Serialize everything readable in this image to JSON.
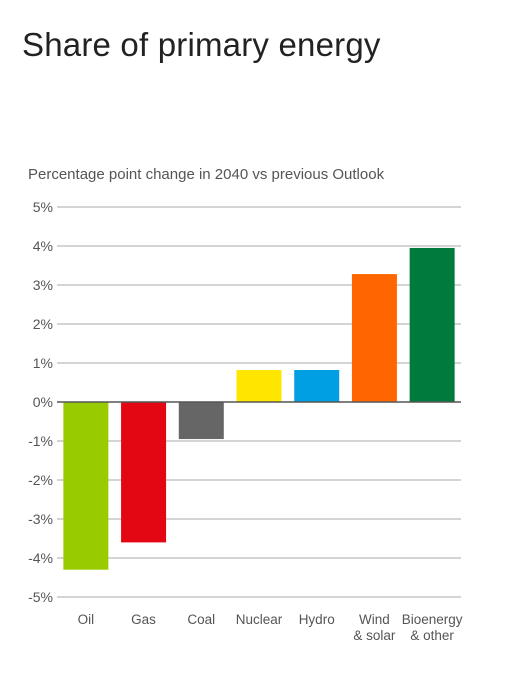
{
  "title": "Share of primary energy",
  "chart_data": {
    "type": "bar",
    "title": "Share of primary energy",
    "subtitle": "Percentage point change in 2040 vs previous Outlook",
    "xlabel": "",
    "ylabel": "",
    "ylim": [
      -5,
      5
    ],
    "y_ticks": [
      {
        "value": 5,
        "label": "5%"
      },
      {
        "value": 4,
        "label": "4%"
      },
      {
        "value": 3,
        "label": "3%"
      },
      {
        "value": 2,
        "label": "2%"
      },
      {
        "value": 1,
        "label": "1%"
      },
      {
        "value": 0,
        "label": "0%"
      },
      {
        "value": -1,
        "label": "-1%"
      },
      {
        "value": -2,
        "label": "-2%"
      },
      {
        "value": -3,
        "label": "-3%"
      },
      {
        "value": -4,
        "label": "-4%"
      },
      {
        "value": -5,
        "label": "-5%"
      }
    ],
    "grid": true,
    "legend": "none",
    "categories": [
      [
        "Oil"
      ],
      [
        "Gas"
      ],
      [
        "Coal"
      ],
      [
        "Nuclear"
      ],
      [
        "Hydro"
      ],
      [
        "Wind",
        "& solar"
      ],
      [
        "Bioenergy",
        "& other"
      ]
    ],
    "values": [
      -4.3,
      -3.6,
      -0.95,
      0.82,
      0.82,
      3.28,
      3.95
    ],
    "colors": [
      "#99cc00",
      "#e30613",
      "#666666",
      "#ffe600",
      "#009fe3",
      "#ff6600",
      "#007a3d"
    ],
    "grid_color": "#aaaaaa",
    "zero_line_color": "#555555"
  }
}
